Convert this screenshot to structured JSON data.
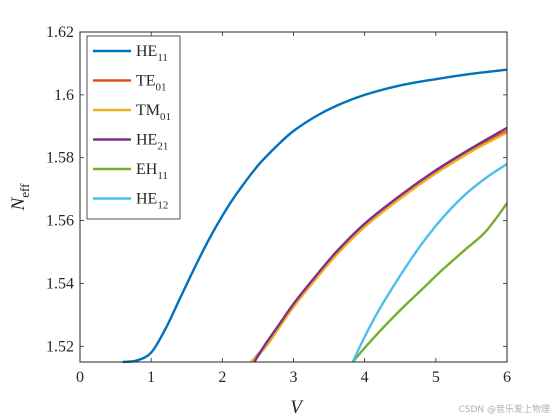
{
  "chart_data": {
    "type": "line",
    "xlabel": "V",
    "ylabel": "N",
    "ylabel_sub": "eff",
    "xlim": [
      0,
      6
    ],
    "ylim": [
      1.515,
      1.62
    ],
    "xticks": [
      0,
      1,
      2,
      3,
      4,
      5,
      6
    ],
    "yticks": [
      1.52,
      1.54,
      1.56,
      1.58,
      1.6,
      1.62
    ],
    "xtick_labels": [
      "0",
      "1",
      "2",
      "3",
      "4",
      "5",
      "6"
    ],
    "ytick_labels": [
      "1.52",
      "1.54",
      "1.56",
      "1.58",
      "1.6",
      "1.62"
    ],
    "grid": false,
    "legend_position": "top-left",
    "series": [
      {
        "name": "HE",
        "sub": "11",
        "color": "#0072BD",
        "x": [
          0.6,
          0.8,
          1.0,
          1.2,
          1.4,
          1.6,
          1.8,
          2.0,
          2.2,
          2.5,
          2.8,
          3.0,
          3.3,
          3.6,
          4.0,
          4.5,
          5.0,
          5.5,
          6.0
        ],
        "y": [
          1.515,
          1.5155,
          1.518,
          1.5255,
          1.535,
          1.5445,
          1.5535,
          1.5615,
          1.5685,
          1.5775,
          1.5845,
          1.5885,
          1.593,
          1.5965,
          1.6,
          1.603,
          1.605,
          1.6067,
          1.608
        ]
      },
      {
        "name": "TE",
        "sub": "01",
        "color": "#D95319",
        "x": [
          2.405,
          2.6,
          2.8,
          3.0,
          3.3,
          3.6,
          4.0,
          4.5,
          5.0,
          5.5,
          6.0
        ],
        "y": [
          1.515,
          1.52,
          1.5265,
          1.533,
          1.5415,
          1.5495,
          1.5585,
          1.5675,
          1.5755,
          1.5825,
          1.5885
        ]
      },
      {
        "name": "TM",
        "sub": "01",
        "color": "#EDB120",
        "x": [
          2.405,
          2.6,
          2.8,
          3.0,
          3.3,
          3.6,
          4.0,
          4.5,
          5.0,
          5.5,
          6.0
        ],
        "y": [
          1.515,
          1.5195,
          1.526,
          1.5325,
          1.541,
          1.549,
          1.558,
          1.567,
          1.575,
          1.582,
          1.588
        ]
      },
      {
        "name": "HE",
        "sub": "21",
        "color": "#7E2F8E",
        "x": [
          2.45,
          2.6,
          2.8,
          3.0,
          3.3,
          3.6,
          4.0,
          4.5,
          5.0,
          5.5,
          6.0
        ],
        "y": [
          1.515,
          1.5205,
          1.527,
          1.5335,
          1.542,
          1.55,
          1.559,
          1.568,
          1.576,
          1.583,
          1.5895
        ]
      },
      {
        "name": "EH",
        "sub": "11",
        "color": "#77AC30",
        "x": [
          3.832,
          4.0,
          4.2,
          4.5,
          4.8,
          5.1,
          5.4,
          5.7,
          6.0
        ],
        "y": [
          1.515,
          1.5195,
          1.5245,
          1.5315,
          1.538,
          1.5445,
          1.5505,
          1.5565,
          1.5655
        ]
      },
      {
        "name": "HE",
        "sub": "12",
        "color": "#4DBEEE",
        "x": [
          3.832,
          4.0,
          4.2,
          4.5,
          4.8,
          5.1,
          5.4,
          5.7,
          6.0
        ],
        "y": [
          1.515,
          1.523,
          1.5315,
          1.5425,
          1.5525,
          1.561,
          1.568,
          1.5735,
          1.578
        ]
      }
    ]
  },
  "watermark": "CSDN @音乐爱上物理"
}
